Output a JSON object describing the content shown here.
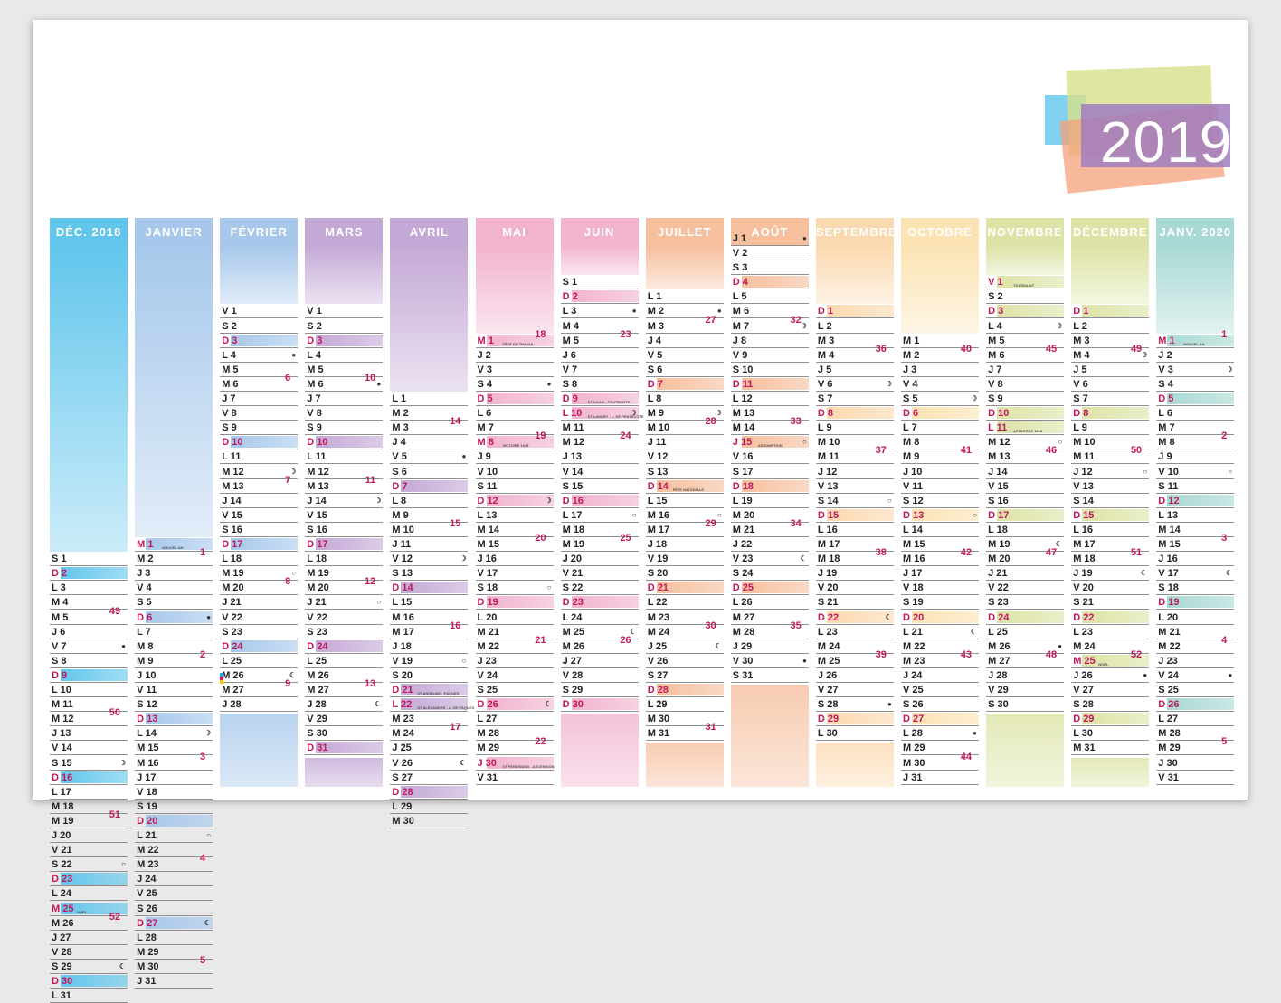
{
  "year": "2019",
  "colors": {
    "sunday_text": "#c2185b",
    "bar_blue": "#29a7df",
    "bar_red": "#d81b60",
    "bar_yellow": "#f6c200"
  },
  "months": [
    {
      "name": "DÉC. 2018",
      "color": "#62c6ec",
      "start": 23,
      "dow": "S",
      "num": 31,
      "sundays": [
        2,
        9,
        16,
        23,
        30
      ],
      "weeks": {
        "5": "49",
        "12": "50",
        "19": "51",
        "26": "52"
      },
      "moons": {
        "7": "●",
        "15": "☽",
        "22": "○",
        "29": "☾"
      },
      "notes": {
        "25": "NOËL"
      },
      "holidays": [
        25
      ]
    },
    {
      "name": "JANVIER",
      "color": "#a7c8eb",
      "start": 22,
      "dow": "M",
      "num": 31,
      "sundays": [
        6,
        13,
        20,
        27
      ],
      "weeks": {
        "2": "1",
        "9": "2",
        "16": "3",
        "23": "4",
        "30": "5"
      },
      "moons": {
        "6": "●",
        "14": "☽",
        "21": "○",
        "27": "☾"
      },
      "notes": {
        "1": "NOUVEL AN"
      },
      "holidays": [
        1
      ]
    },
    {
      "name": "FÉVRIER",
      "color": "#a7c8eb",
      "start": 6,
      "dow": "V",
      "num": 28,
      "sundays": [
        3,
        10,
        17,
        24
      ],
      "weeks": {
        "6": "6",
        "13": "7",
        "20": "8",
        "27": "9"
      },
      "moons": {
        "4": "●",
        "12": "☽",
        "19": "○",
        "26": "☾"
      },
      "notes": {},
      "holidays": []
    },
    {
      "name": "MARS",
      "color": "#c4a9d6",
      "start": 6,
      "dow": "V",
      "num": 31,
      "sundays": [
        3,
        10,
        17,
        24,
        31
      ],
      "weeks": {
        "6": "10",
        "13": "11",
        "20": "12",
        "27": "13"
      },
      "moons": {
        "6": "●",
        "14": "☽",
        "21": "○",
        "28": "☾"
      },
      "notes": {},
      "holidays": []
    },
    {
      "name": "AVRIL",
      "color": "#c4a9d6",
      "start": 12,
      "dow": "L",
      "num": 30,
      "sundays": [
        7,
        14,
        21,
        28
      ],
      "weeks": {
        "3": "14",
        "10": "15",
        "17": "16",
        "24": "17"
      },
      "moons": {
        "5": "●",
        "12": "☽",
        "19": "○",
        "26": "☾"
      },
      "notes": {
        "21": "ST ANSELME - PÂQUES",
        "22": "ST ALEXANDRE - L. DE PÂQUES"
      },
      "holidays": [
        22
      ]
    },
    {
      "name": "MAI",
      "color": "#f2b3cf",
      "start": 8,
      "dow": "M",
      "num": 31,
      "sundays": [
        5,
        12,
        19,
        26
      ],
      "weeks": {
        "1": "18",
        "8": "19",
        "15": "20",
        "22": "21",
        "29": "22"
      },
      "moons": {
        "4": "●",
        "12": "☽",
        "18": "○",
        "26": "☾"
      },
      "notes": {
        "1": "FÊTE DU TRAVAIL",
        "8": "VICTOIRE 1945",
        "30": "ST FERDINAND - ASCENSION"
      },
      "holidays": [
        1,
        8,
        30
      ]
    },
    {
      "name": "JUIN",
      "color": "#f2b3cf",
      "start": 4,
      "dow": "S",
      "num": 30,
      "sundays": [
        2,
        9,
        16,
        23,
        30
      ],
      "weeks": {
        "5": "23",
        "12": "24",
        "19": "25",
        "26": "26"
      },
      "moons": {
        "3": "●",
        "10": "☽",
        "17": "○",
        "25": "☾"
      },
      "notes": {
        "9": "ST DIANE - PENTECÔTE",
        "10": "ST LANDRY - L. DE PENTECÔTE"
      },
      "holidays": [
        10
      ]
    },
    {
      "name": "JUILLET",
      "color": "#f6bf9e",
      "start": 5,
      "dow": "L",
      "num": 31,
      "sundays": [
        7,
        14,
        21,
        28
      ],
      "weeks": {
        "3": "27",
        "10": "28",
        "17": "29",
        "24": "30",
        "31": "31"
      },
      "moons": {
        "2": "●",
        "9": "☽",
        "16": "○",
        "25": "☾"
      },
      "notes": {
        "14": "FÊTE NATIONALE"
      },
      "holidays": [
        14
      ]
    },
    {
      "name": "AOÛT",
      "color": "#f6bf9e",
      "start": 1,
      "dow": "J",
      "num": 31,
      "sundays": [
        4,
        11,
        18,
        25
      ],
      "weeks": {
        "7": "32",
        "14": "33",
        "21": "34",
        "28": "35"
      },
      "moons": {
        "1": "●",
        "7": "☽",
        "15": "○",
        "23": "☾",
        "30": "●"
      },
      "notes": {
        "15": "ASSOMPTION"
      },
      "holidays": [
        15
      ]
    },
    {
      "name": "SEPTEMBRE",
      "color": "#fbd9b0",
      "start": 6,
      "dow": "D",
      "num": 30,
      "sundays": [
        1,
        8,
        15,
        22,
        29
      ],
      "weeks": {
        "4": "36",
        "11": "37",
        "18": "38",
        "25": "39"
      },
      "moons": {
        "6": "☽",
        "14": "○",
        "22": "☾",
        "28": "●"
      },
      "notes": {},
      "holidays": []
    },
    {
      "name": "OCTOBRE",
      "color": "#fbe3b3",
      "start": 8,
      "dow": "M",
      "num": 31,
      "sundays": [
        6,
        13,
        20,
        27
      ],
      "weeks": {
        "2": "40",
        "9": "41",
        "16": "42",
        "23": "43",
        "30": "44"
      },
      "moons": {
        "5": "☽",
        "13": "○",
        "21": "☾",
        "28": "●"
      },
      "notes": {},
      "holidays": []
    },
    {
      "name": "NOVEMBRE",
      "color": "#dde3a6",
      "start": 4,
      "dow": "V",
      "num": 30,
      "sundays": [
        3,
        10,
        17,
        24
      ],
      "weeks": {
        "6": "45",
        "13": "46",
        "20": "47",
        "27": "48"
      },
      "moons": {
        "4": "☽",
        "12": "○",
        "19": "☾",
        "26": "●"
      },
      "notes": {
        "1": "TOUSSAINT",
        "11": "ARMISTICE 1918"
      },
      "holidays": [
        1,
        11
      ]
    },
    {
      "name": "DÉCEMBRE",
      "color": "#dde3a6",
      "start": 6,
      "dow": "D",
      "num": 31,
      "sundays": [
        1,
        8,
        15,
        22,
        29
      ],
      "weeks": {
        "4": "49",
        "11": "50",
        "18": "51",
        "25": "52"
      },
      "moons": {
        "4": "☽",
        "12": "○",
        "19": "☾",
        "26": "●"
      },
      "notes": {
        "25": "NOËL"
      },
      "holidays": [
        25
      ]
    },
    {
      "name": "JANV. 2020",
      "color": "#a9d9d4",
      "start": 8,
      "dow": "M",
      "num": 31,
      "sundays": [
        5,
        12,
        19,
        26
      ],
      "weeks": {
        "1": "1",
        "8": "2",
        "15": "3",
        "22": "4",
        "29": "5"
      },
      "moons": {
        "3": "☽",
        "10": "○",
        "17": "☾",
        "24": "●"
      },
      "notes": {
        "1": "NOUVEL AN"
      },
      "holidays": [
        1
      ]
    }
  ]
}
